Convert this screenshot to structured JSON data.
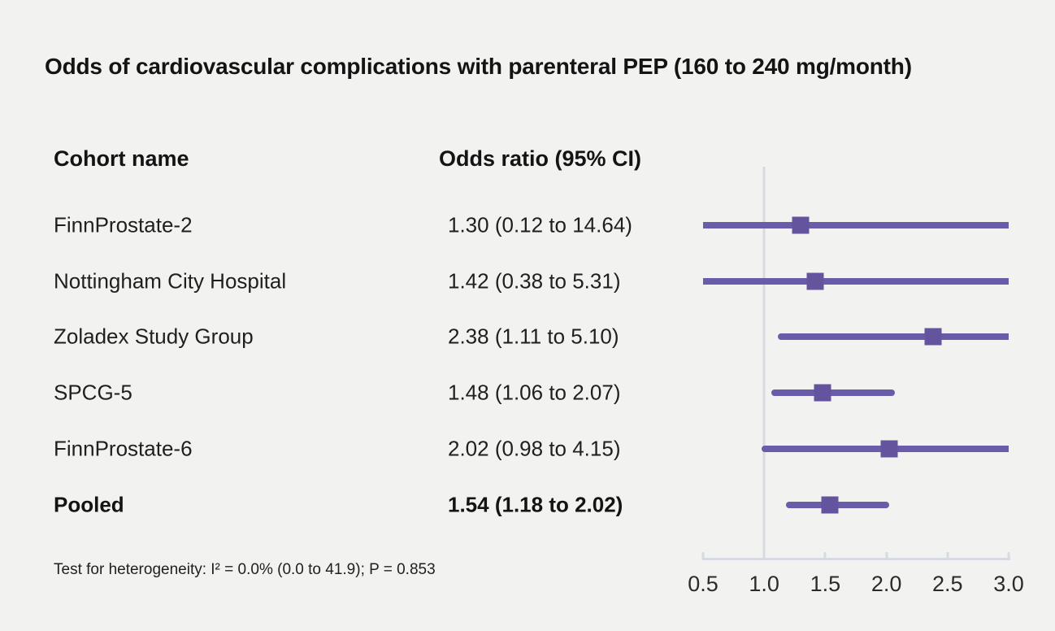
{
  "title": "Odds of cardiovascular complications with parenteral PEP (160 to 240 mg/month)",
  "columns": {
    "cohort": "Cohort name",
    "odds_ratio": "Odds ratio (95% CI)"
  },
  "footnote": "Test for heterogeneity: I² = 0.0% (0.0 to 41.9); P = 0.853",
  "chart_data": {
    "type": "forest",
    "title": "Odds of cardiovascular complications with parenteral PEP (160 to 240 mg/month)",
    "orientation": "horizontal",
    "xlabel": "",
    "ylabel": "",
    "axis": {
      "min": 0.5,
      "max": 3.0,
      "reference": 1.0,
      "tick_values": [
        0.5,
        1.0,
        1.5,
        2.0,
        2.5,
        3.0
      ],
      "tick_labels": [
        "0.5",
        "1.0",
        "1.5",
        "2.0",
        "2.5",
        "3.0"
      ],
      "grid": false
    },
    "studies": [
      {
        "name": "FinnProstate-2",
        "or": 1.3,
        "ci_low": 0.12,
        "ci_high": 14.64,
        "label": "1.30 (0.12 to 14.64)",
        "pooled": false
      },
      {
        "name": "Nottingham City Hospital",
        "or": 1.42,
        "ci_low": 0.38,
        "ci_high": 5.31,
        "label": "1.42 (0.38 to 5.31)",
        "pooled": false
      },
      {
        "name": "Zoladex Study Group",
        "or": 2.38,
        "ci_low": 1.11,
        "ci_high": 5.1,
        "label": "2.38 (1.11 to 5.10)",
        "pooled": false
      },
      {
        "name": "SPCG-5",
        "or": 1.48,
        "ci_low": 1.06,
        "ci_high": 2.07,
        "label": "1.48 (1.06 to 2.07)",
        "pooled": false
      },
      {
        "name": "FinnProstate-6",
        "or": 2.02,
        "ci_low": 0.98,
        "ci_high": 4.15,
        "label": "2.02 (0.98 to 4.15)",
        "pooled": false
      },
      {
        "name": "Pooled",
        "or": 1.54,
        "ci_low": 1.18,
        "ci_high": 2.02,
        "label": "1.54 (1.18 to 2.02)",
        "pooled": true
      }
    ],
    "heterogeneity": "Test for heterogeneity: I² = 0.0% (0.0 to 41.9); P = 0.853",
    "colors": {
      "ci_line": "#6B5CA9",
      "marker": "#64549E",
      "reference_line": "#D6DAE1",
      "axis_line": "#D6DAE1",
      "background": "#F2F2F1",
      "text": "#1A1A1A"
    }
  }
}
